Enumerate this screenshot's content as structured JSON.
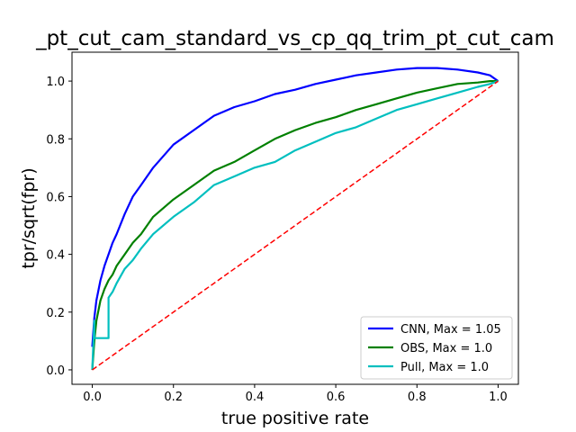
{
  "chart_data": {
    "type": "line",
    "title": "_pt_cut_cam_standard_vs_cp_qq_trim_pt_cut_cam",
    "xlabel": "true positive rate",
    "ylabel": "tpr/sqrt(fpr)",
    "xlim": [
      -0.05,
      1.05
    ],
    "ylim": [
      -0.05,
      1.1
    ],
    "xticks": [
      0.0,
      0.2,
      0.4,
      0.6,
      0.8,
      1.0
    ],
    "xtick_labels": [
      "0.0",
      "0.2",
      "0.4",
      "0.6",
      "0.8",
      "1.0"
    ],
    "yticks": [
      0.0,
      0.2,
      0.4,
      0.6,
      0.8,
      1.0
    ],
    "ytick_labels": [
      "0.0",
      "0.2",
      "0.4",
      "0.6",
      "0.8",
      "1.0"
    ],
    "grid": false,
    "legend_position": "lower-right",
    "series": [
      {
        "name": "CNN, Max = 1.05",
        "color": "#0000ff",
        "x": [
          0.0,
          0.005,
          0.01,
          0.02,
          0.03,
          0.04,
          0.05,
          0.06,
          0.08,
          0.1,
          0.12,
          0.15,
          0.2,
          0.25,
          0.3,
          0.35,
          0.4,
          0.45,
          0.5,
          0.55,
          0.6,
          0.65,
          0.7,
          0.75,
          0.8,
          0.85,
          0.9,
          0.95,
          0.98,
          1.0
        ],
        "y": [
          0.08,
          0.18,
          0.24,
          0.31,
          0.36,
          0.4,
          0.44,
          0.47,
          0.54,
          0.6,
          0.64,
          0.7,
          0.78,
          0.83,
          0.88,
          0.91,
          0.93,
          0.955,
          0.97,
          0.99,
          1.005,
          1.02,
          1.03,
          1.04,
          1.045,
          1.045,
          1.04,
          1.03,
          1.02,
          1.0
        ]
      },
      {
        "name": "OBS, Max = 1.0",
        "color": "#008000",
        "x": [
          0.0,
          0.005,
          0.01,
          0.02,
          0.03,
          0.04,
          0.05,
          0.06,
          0.08,
          0.1,
          0.12,
          0.15,
          0.2,
          0.25,
          0.3,
          0.35,
          0.4,
          0.45,
          0.5,
          0.55,
          0.6,
          0.65,
          0.7,
          0.75,
          0.8,
          0.85,
          0.9,
          0.95,
          0.98,
          1.0
        ],
        "y": [
          0.0,
          0.1,
          0.17,
          0.24,
          0.28,
          0.31,
          0.33,
          0.36,
          0.4,
          0.44,
          0.47,
          0.53,
          0.59,
          0.64,
          0.69,
          0.72,
          0.76,
          0.8,
          0.83,
          0.855,
          0.875,
          0.9,
          0.92,
          0.94,
          0.96,
          0.975,
          0.99,
          0.995,
          1.0,
          1.0
        ]
      },
      {
        "name": "Pull, Max = 1.0",
        "color": "#00bfbf",
        "x": [
          0.0,
          0.005,
          0.005,
          0.04,
          0.04,
          0.05,
          0.06,
          0.08,
          0.1,
          0.12,
          0.15,
          0.2,
          0.25,
          0.3,
          0.35,
          0.4,
          0.45,
          0.5,
          0.55,
          0.6,
          0.65,
          0.7,
          0.75,
          0.8,
          0.85,
          0.9,
          0.95,
          0.98,
          1.0
        ],
        "y": [
          0.0,
          0.17,
          0.11,
          0.11,
          0.25,
          0.27,
          0.3,
          0.35,
          0.38,
          0.42,
          0.47,
          0.53,
          0.58,
          0.64,
          0.67,
          0.7,
          0.72,
          0.76,
          0.79,
          0.82,
          0.84,
          0.87,
          0.9,
          0.92,
          0.94,
          0.96,
          0.98,
          0.99,
          1.0
        ]
      },
      {
        "name": "",
        "color": "#ff0000",
        "dashed": true,
        "x": [
          0.0,
          1.0
        ],
        "y": [
          0.0,
          1.0
        ]
      }
    ]
  }
}
